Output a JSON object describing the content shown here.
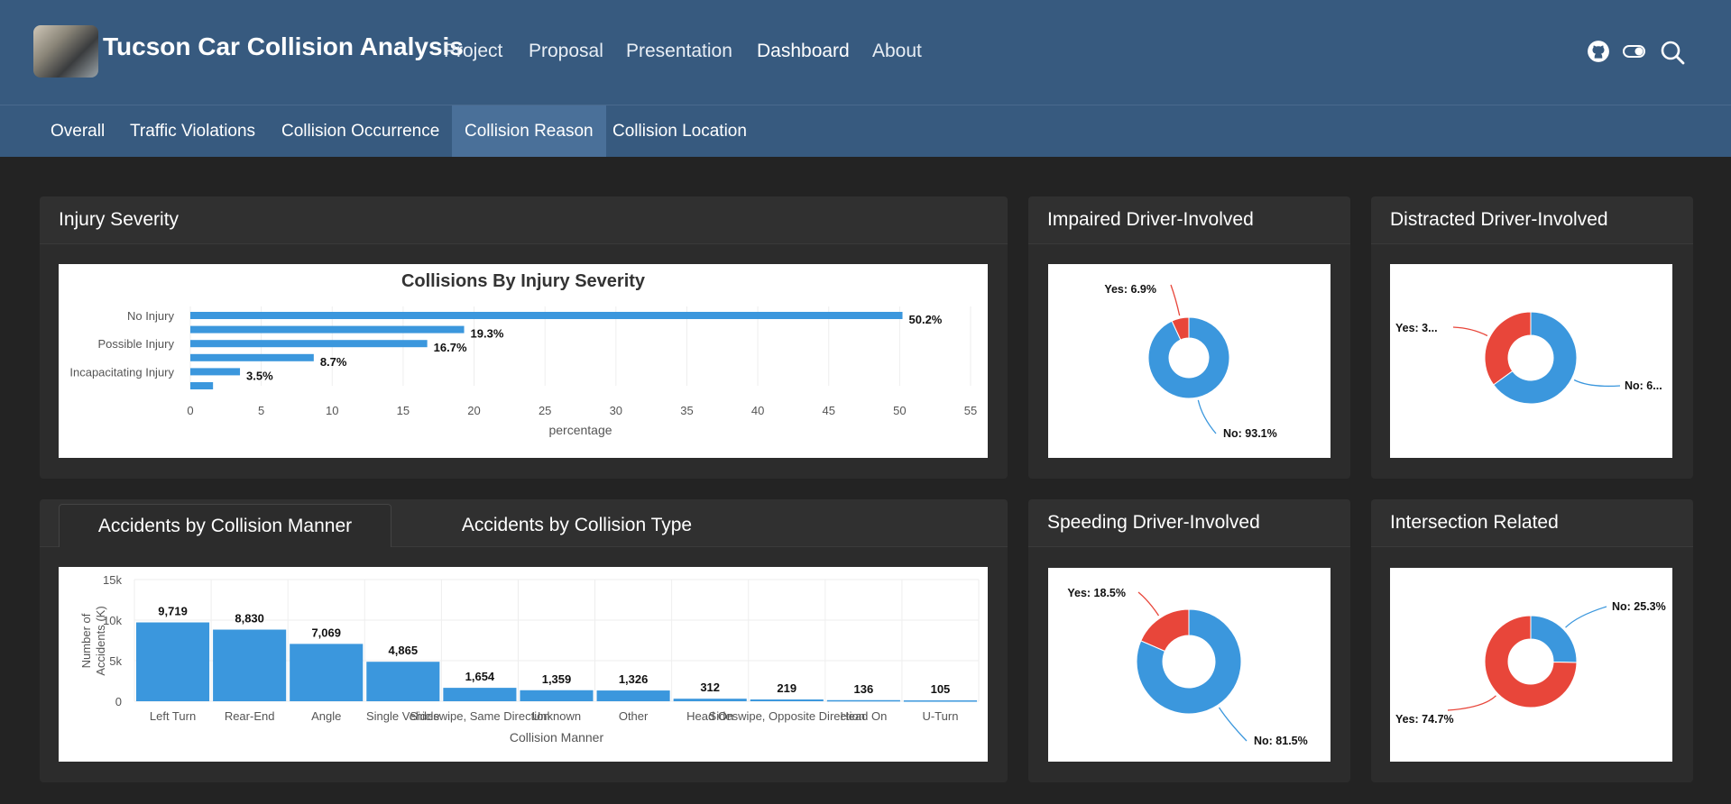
{
  "header": {
    "title": "Tucson Car Collision Analysis",
    "nav": [
      "Project",
      "Proposal",
      "Presentation",
      "Dashboard",
      "About"
    ]
  },
  "subnav": [
    "Overall",
    "Traffic Violations",
    "Collision Occurrence",
    "Collision Reason",
    "Collision Location"
  ],
  "icons": [
    "github-icon",
    "toggle-icon",
    "search-icon"
  ],
  "cards": {
    "injury": "Injury Severity",
    "impaired": "Impaired Driver-Involved",
    "distracted": "Distracted Driver-Involved",
    "speeding": "Speeding Driver-Involved",
    "intersection": "Intersection Related"
  },
  "collision_tabs": [
    "Accidents by Collision Manner",
    "Accidents by Collision Type"
  ],
  "colors": {
    "blue": "#3b97dd",
    "red": "#e8463a",
    "nav": "#375a7f"
  },
  "chart_data": [
    {
      "id": "injury",
      "type": "bar",
      "orientation": "horizontal",
      "title": "Collisions By Injury Severity",
      "xlabel": "percentage",
      "ylabel": "",
      "ytick_labels": [
        "No Injury",
        "Possible Injury",
        "Incapacitating Injury"
      ],
      "values": [
        50.2,
        19.3,
        16.7,
        8.7,
        3.5,
        1.6
      ],
      "value_labels": [
        "50.2%",
        "19.3%",
        "16.7%",
        "8.7%",
        "3.5%",
        ""
      ],
      "xlim": [
        0,
        55
      ],
      "xticks": [
        0,
        5,
        10,
        15,
        20,
        25,
        30,
        35,
        40,
        45,
        50,
        55
      ]
    },
    {
      "id": "manner",
      "type": "bar",
      "title": "",
      "xlabel": "Collision Manner",
      "ylabel": "Number of Accidents (K)",
      "categories": [
        "Left Turn",
        "Rear-End",
        "Angle",
        "Single Vehicle",
        "Sideswipe, Same Direction",
        "Unknown",
        "Other",
        "Head On",
        "Sideswipe, Opposite Direction",
        "Head On",
        "U-Turn"
      ],
      "values": [
        9719,
        8830,
        7069,
        4865,
        1654,
        1359,
        1326,
        312,
        219,
        136,
        105
      ],
      "value_labels": [
        "9,719",
        "8,830",
        "7,069",
        "4,865",
        "1,654",
        "1,359",
        "1,326",
        "312",
        "219",
        "136",
        "105"
      ],
      "ylim": [
        0,
        15000
      ],
      "ytick_labels": [
        "0",
        "5k",
        "10k",
        "15k"
      ]
    },
    {
      "id": "impaired",
      "type": "pie",
      "slices": [
        {
          "label": "Yes: 6.9%",
          "value": 6.9,
          "color": "#e8463a"
        },
        {
          "label": "No: 93.1%",
          "value": 93.1,
          "color": "#3b97dd"
        }
      ]
    },
    {
      "id": "distracted",
      "type": "pie",
      "slices": [
        {
          "label": "Yes: 3...",
          "value": 35,
          "color": "#e8463a"
        },
        {
          "label": "No: 6...",
          "value": 65,
          "color": "#3b97dd"
        }
      ]
    },
    {
      "id": "speeding",
      "type": "pie",
      "slices": [
        {
          "label": "Yes: 18.5%",
          "value": 18.5,
          "color": "#e8463a"
        },
        {
          "label": "No: 81.5%",
          "value": 81.5,
          "color": "#3b97dd"
        }
      ]
    },
    {
      "id": "intersection",
      "type": "pie",
      "slices": [
        {
          "label": "No: 25.3%",
          "value": 25.3,
          "color": "#3b97dd"
        },
        {
          "label": "Yes: 74.7%",
          "value": 74.7,
          "color": "#e8463a"
        }
      ]
    }
  ]
}
